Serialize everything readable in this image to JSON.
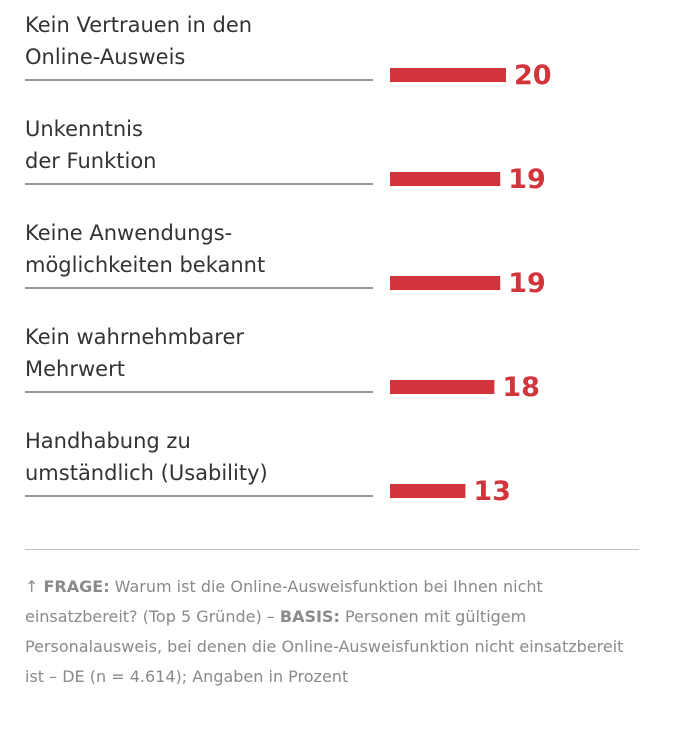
{
  "chart_data": {
    "type": "bar",
    "orientation": "horizontal",
    "categories": [
      [
        "Kein Vertrauen in den",
        "Online-Ausweis"
      ],
      [
        "Unkenntnis",
        "der Funktion"
      ],
      [
        "Keine Anwendungs-",
        "möglichkeiten bekannt"
      ],
      [
        "Kein wahrnehmbarer",
        "Mehrwert"
      ],
      [
        "Handhabung zu",
        "umständlich (Usability)"
      ]
    ],
    "values": [
      20,
      19,
      19,
      18,
      13
    ],
    "value_labels": [
      "20",
      "19",
      "19",
      "18",
      "13"
    ],
    "bar_color": "#d1343b",
    "grid": false,
    "legend": "none"
  },
  "footnote": {
    "frage_label": "FRAGE:",
    "frage_text": " Warum ist die Online-Ausweisfunktion bei Ihnen nicht einsatzbereit? (Top 5 Gründe) – ",
    "basis_label": "BASIS:",
    "basis_text": " Personen mit gültigem Personalausweis, bei denen die Online-Ausweisfunktion nicht einsatzbereit ist – DE (n = 4.614); Angaben in Prozent",
    "icon": "arrow-up-icon"
  },
  "colors": {
    "accent": "#d1343b",
    "text": "#333333",
    "muted": "#8a8a8a",
    "rule": "#bdbdbd"
  }
}
